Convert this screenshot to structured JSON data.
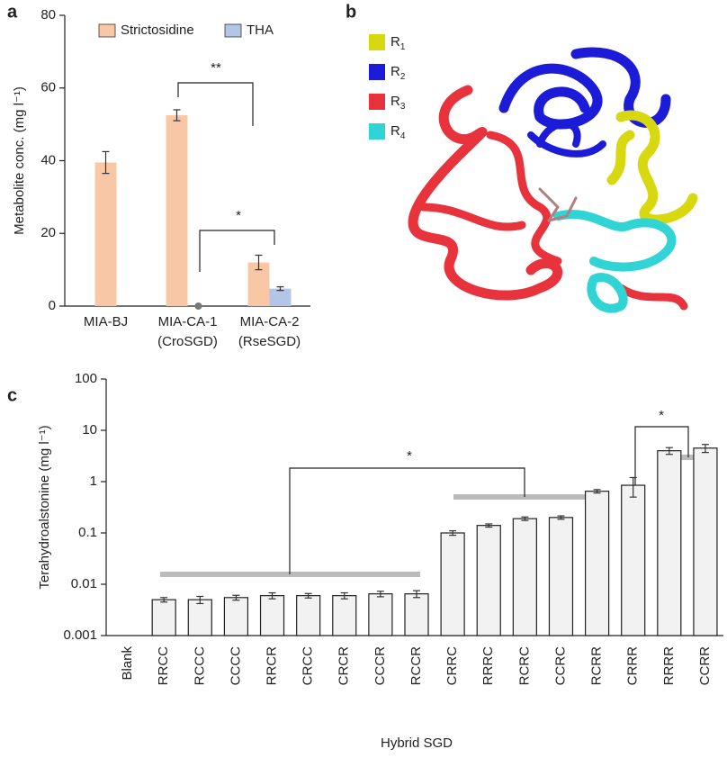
{
  "panel_labels": [
    "a",
    "b",
    "c"
  ],
  "structure": {
    "legend": [
      {
        "label": "R",
        "sub": "1",
        "color": "#d8d810"
      },
      {
        "label": "R",
        "sub": "2",
        "color": "#1c1cd8"
      },
      {
        "label": "R",
        "sub": "3",
        "color": "#e8323c"
      },
      {
        "label": "R",
        "sub": "4",
        "color": "#30d4d4"
      }
    ]
  },
  "chart_data": [
    {
      "type": "bar",
      "ylabel": "Metabolite conc. (mg l⁻¹)",
      "categories": [
        "MIA-BJ",
        "MIA-CA-1",
        "MIA-CA-2"
      ],
      "category_sublabels": [
        null,
        "(CroSGD)",
        "(RseSGD)"
      ],
      "series": [
        {
          "name": "Strictosidine",
          "color": "#f8c8a6",
          "values": [
            39.5,
            52.5,
            12
          ],
          "errors": [
            3,
            1.5,
            2
          ]
        },
        {
          "name": "THA",
          "color": "#b3c6e7",
          "values": [
            null,
            0,
            4.8
          ],
          "errors": [
            null,
            null,
            0.5
          ]
        }
      ],
      "ylim": [
        0,
        80
      ],
      "yticks": [
        0,
        20,
        40,
        60,
        80
      ],
      "annotations": [
        "**",
        "*"
      ]
    },
    {
      "type": "bar",
      "log": true,
      "ylabel": "Terahydroalstonine (mg l⁻¹)",
      "xlabel": "Hybrid SGD",
      "categories": [
        "Blank",
        "RRCC",
        "RCCC",
        "CCCC",
        "RRCR",
        "CRCC",
        "CRCR",
        "CCCR",
        "RCCR",
        "CRRC",
        "RRRC",
        "RCRC",
        "CCRC",
        "RCRR",
        "CRRR",
        "RRRR",
        "CCRR"
      ],
      "values": [
        null,
        0.005,
        0.005,
        0.0055,
        0.006,
        0.006,
        0.006,
        0.0065,
        0.0065,
        0.1,
        0.14,
        0.19,
        0.2,
        0.65,
        0.85,
        4,
        4.5
      ],
      "errors": [
        null,
        0.0005,
        0.0008,
        0.0006,
        0.0008,
        0.0006,
        0.0008,
        0.0008,
        0.001,
        0.01,
        0.01,
        0.015,
        0.015,
        0.05,
        0.35,
        0.6,
        0.8
      ],
      "color": "#f2f2f2",
      "ylim": [
        0.001,
        100
      ],
      "yticks": [
        0.001,
        0.01,
        0.1,
        1,
        10,
        100
      ],
      "annotations": [
        "*",
        "*"
      ]
    }
  ]
}
